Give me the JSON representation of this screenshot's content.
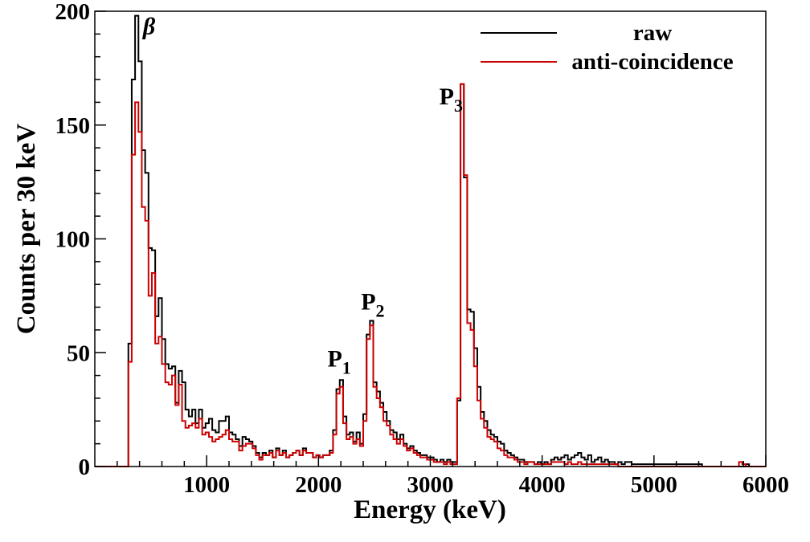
{
  "chart_data": {
    "type": "histogram",
    "title": "",
    "xlabel": "Energy (keV)",
    "ylabel": "Counts per 30 keV",
    "xlim": [
      0,
      6000
    ],
    "ylim": [
      0,
      200
    ],
    "x_ticks": [
      1000,
      2000,
      3000,
      4000,
      5000,
      6000
    ],
    "y_ticks": [
      0,
      50,
      100,
      150,
      200
    ],
    "x_tick_labels": [
      "1000",
      "2000",
      "3000",
      "4000",
      "5000",
      "6000"
    ],
    "y_tick_labels": [
      "0",
      "50",
      "100",
      "150",
      "200"
    ],
    "bin_width": 30,
    "series": [
      {
        "name": "raw",
        "color": "#000000",
        "points": [
          [
            0,
            0
          ],
          [
            270,
            0
          ],
          [
            300,
            54
          ],
          [
            330,
            170
          ],
          [
            360,
            198
          ],
          [
            390,
            178
          ],
          [
            420,
            139
          ],
          [
            450,
            129
          ],
          [
            480,
            96
          ],
          [
            510,
            95
          ],
          [
            540,
            66
          ],
          [
            570,
            74
          ],
          [
            600,
            56
          ],
          [
            630,
            45
          ],
          [
            660,
            43
          ],
          [
            690,
            44
          ],
          [
            720,
            28
          ],
          [
            750,
            42
          ],
          [
            780,
            37
          ],
          [
            810,
            25
          ],
          [
            840,
            22
          ],
          [
            870,
            25
          ],
          [
            900,
            19
          ],
          [
            930,
            25
          ],
          [
            960,
            17
          ],
          [
            990,
            19
          ],
          [
            1020,
            21
          ],
          [
            1050,
            16
          ],
          [
            1080,
            15
          ],
          [
            1110,
            20
          ],
          [
            1140,
            20
          ],
          [
            1170,
            22
          ],
          [
            1200,
            15
          ],
          [
            1230,
            14
          ],
          [
            1260,
            12
          ],
          [
            1290,
            9
          ],
          [
            1320,
            13
          ],
          [
            1350,
            12
          ],
          [
            1380,
            11
          ],
          [
            1410,
            9
          ],
          [
            1440,
            6
          ],
          [
            1470,
            4
          ],
          [
            1500,
            6
          ],
          [
            1530,
            5
          ],
          [
            1560,
            7
          ],
          [
            1590,
            4
          ],
          [
            1620,
            8
          ],
          [
            1650,
            5
          ],
          [
            1680,
            7
          ],
          [
            1710,
            4
          ],
          [
            1740,
            5
          ],
          [
            1770,
            6
          ],
          [
            1800,
            7
          ],
          [
            1830,
            5
          ],
          [
            1860,
            8
          ],
          [
            1890,
            6
          ],
          [
            1920,
            6
          ],
          [
            1950,
            4
          ],
          [
            1980,
            5
          ],
          [
            2010,
            4
          ],
          [
            2040,
            5
          ],
          [
            2070,
            5
          ],
          [
            2100,
            7
          ],
          [
            2130,
            16
          ],
          [
            2160,
            34
          ],
          [
            2190,
            38
          ],
          [
            2220,
            22
          ],
          [
            2250,
            14
          ],
          [
            2280,
            15
          ],
          [
            2310,
            11
          ],
          [
            2340,
            15
          ],
          [
            2370,
            10
          ],
          [
            2400,
            23
          ],
          [
            2430,
            58
          ],
          [
            2460,
            64
          ],
          [
            2490,
            37
          ],
          [
            2520,
            33
          ],
          [
            2550,
            28
          ],
          [
            2580,
            24
          ],
          [
            2610,
            20
          ],
          [
            2640,
            16
          ],
          [
            2670,
            15
          ],
          [
            2700,
            12
          ],
          [
            2730,
            14
          ],
          [
            2760,
            10
          ],
          [
            2790,
            8
          ],
          [
            2820,
            9
          ],
          [
            2850,
            7
          ],
          [
            2880,
            6
          ],
          [
            2910,
            5
          ],
          [
            2940,
            5
          ],
          [
            2970,
            4
          ],
          [
            3000,
            4
          ],
          [
            3030,
            3
          ],
          [
            3060,
            2
          ],
          [
            3090,
            3
          ],
          [
            3120,
            2
          ],
          [
            3150,
            3
          ],
          [
            3180,
            2
          ],
          [
            3210,
            2
          ],
          [
            3240,
            29
          ],
          [
            3270,
            168
          ],
          [
            3300,
            127
          ],
          [
            3330,
            69
          ],
          [
            3360,
            68
          ],
          [
            3390,
            52
          ],
          [
            3420,
            35
          ],
          [
            3450,
            24
          ],
          [
            3480,
            20
          ],
          [
            3510,
            16
          ],
          [
            3540,
            14
          ],
          [
            3570,
            13
          ],
          [
            3600,
            11
          ],
          [
            3630,
            10
          ],
          [
            3660,
            7
          ],
          [
            3690,
            6
          ],
          [
            3720,
            5
          ],
          [
            3750,
            4
          ],
          [
            3780,
            3
          ],
          [
            3810,
            3
          ],
          [
            3840,
            2
          ],
          [
            3870,
            2
          ],
          [
            3900,
            2
          ],
          [
            3930,
            1
          ],
          [
            3960,
            2
          ],
          [
            3990,
            1
          ],
          [
            4020,
            2
          ],
          [
            4050,
            1
          ],
          [
            4080,
            3
          ],
          [
            4110,
            4
          ],
          [
            4140,
            3
          ],
          [
            4170,
            4
          ],
          [
            4200,
            5
          ],
          [
            4230,
            3
          ],
          [
            4260,
            4
          ],
          [
            4290,
            5
          ],
          [
            4320,
            6
          ],
          [
            4350,
            4
          ],
          [
            4380,
            3
          ],
          [
            4410,
            5
          ],
          [
            4440,
            2
          ],
          [
            4470,
            3
          ],
          [
            4500,
            4
          ],
          [
            4530,
            2
          ],
          [
            4560,
            3
          ],
          [
            4590,
            2
          ],
          [
            4620,
            2
          ],
          [
            4650,
            1
          ],
          [
            4680,
            2
          ],
          [
            4710,
            1
          ],
          [
            4740,
            2
          ],
          [
            4770,
            2
          ],
          [
            4800,
            1
          ],
          [
            4830,
            1
          ],
          [
            4860,
            1
          ],
          [
            4890,
            1
          ],
          [
            5400,
            1
          ],
          [
            5430,
            0
          ],
          [
            5820,
            1
          ],
          [
            5850,
            0
          ],
          [
            6000,
            0
          ]
        ]
      },
      {
        "name": "anti-coincidence",
        "color": "#cc0000",
        "points": [
          [
            0,
            0
          ],
          [
            270,
            0
          ],
          [
            300,
            46
          ],
          [
            330,
            137
          ],
          [
            360,
            160
          ],
          [
            390,
            147
          ],
          [
            420,
            114
          ],
          [
            450,
            108
          ],
          [
            480,
            75
          ],
          [
            510,
            85
          ],
          [
            540,
            54
          ],
          [
            570,
            57
          ],
          [
            600,
            45
          ],
          [
            630,
            37
          ],
          [
            660,
            36
          ],
          [
            690,
            40
          ],
          [
            720,
            27
          ],
          [
            750,
            36
          ],
          [
            780,
            20
          ],
          [
            810,
            17
          ],
          [
            840,
            18
          ],
          [
            870,
            19
          ],
          [
            900,
            17
          ],
          [
            930,
            21
          ],
          [
            960,
            14
          ],
          [
            990,
            15
          ],
          [
            1020,
            13
          ],
          [
            1050,
            11
          ],
          [
            1080,
            12
          ],
          [
            1110,
            13
          ],
          [
            1140,
            14
          ],
          [
            1170,
            16
          ],
          [
            1200,
            12
          ],
          [
            1230,
            11
          ],
          [
            1260,
            11
          ],
          [
            1290,
            7
          ],
          [
            1320,
            9
          ],
          [
            1350,
            10
          ],
          [
            1380,
            10
          ],
          [
            1410,
            8
          ],
          [
            1440,
            5
          ],
          [
            1470,
            3
          ],
          [
            1500,
            5
          ],
          [
            1530,
            5
          ],
          [
            1560,
            6
          ],
          [
            1590,
            4
          ],
          [
            1620,
            7
          ],
          [
            1650,
            5
          ],
          [
            1680,
            6
          ],
          [
            1710,
            4
          ],
          [
            1740,
            5
          ],
          [
            1770,
            6
          ],
          [
            1800,
            7
          ],
          [
            1830,
            5
          ],
          [
            1860,
            7
          ],
          [
            1890,
            6
          ],
          [
            1920,
            6
          ],
          [
            1950,
            4
          ],
          [
            1980,
            5
          ],
          [
            2010,
            4
          ],
          [
            2040,
            5
          ],
          [
            2070,
            5
          ],
          [
            2100,
            6
          ],
          [
            2130,
            14
          ],
          [
            2160,
            32
          ],
          [
            2190,
            35
          ],
          [
            2220,
            19
          ],
          [
            2250,
            12
          ],
          [
            2280,
            13
          ],
          [
            2310,
            10
          ],
          [
            2340,
            12
          ],
          [
            2370,
            9
          ],
          [
            2400,
            20
          ],
          [
            2430,
            56
          ],
          [
            2460,
            62
          ],
          [
            2490,
            35
          ],
          [
            2520,
            30
          ],
          [
            2550,
            26
          ],
          [
            2580,
            20
          ],
          [
            2610,
            18
          ],
          [
            2640,
            14
          ],
          [
            2670,
            12
          ],
          [
            2700,
            10
          ],
          [
            2730,
            12
          ],
          [
            2760,
            9
          ],
          [
            2790,
            7
          ],
          [
            2820,
            8
          ],
          [
            2850,
            6
          ],
          [
            2880,
            5
          ],
          [
            2910,
            4
          ],
          [
            2940,
            4
          ],
          [
            2970,
            3
          ],
          [
            3000,
            3
          ],
          [
            3030,
            2
          ],
          [
            3060,
            2
          ],
          [
            3090,
            2
          ],
          [
            3120,
            1
          ],
          [
            3150,
            2
          ],
          [
            3180,
            1
          ],
          [
            3210,
            1
          ],
          [
            3240,
            30
          ],
          [
            3270,
            168
          ],
          [
            3300,
            128
          ],
          [
            3330,
            63
          ],
          [
            3360,
            60
          ],
          [
            3390,
            44
          ],
          [
            3420,
            29
          ],
          [
            3450,
            21
          ],
          [
            3480,
            17
          ],
          [
            3510,
            13
          ],
          [
            3540,
            12
          ],
          [
            3570,
            11
          ],
          [
            3600,
            8
          ],
          [
            3630,
            7
          ],
          [
            3660,
            5
          ],
          [
            3690,
            4
          ],
          [
            3720,
            4
          ],
          [
            3750,
            3
          ],
          [
            3780,
            2
          ],
          [
            3810,
            2
          ],
          [
            3840,
            1
          ],
          [
            3870,
            2
          ],
          [
            3900,
            2
          ],
          [
            3930,
            1
          ],
          [
            3960,
            1
          ],
          [
            3990,
            1
          ],
          [
            4020,
            1
          ],
          [
            4050,
            1
          ],
          [
            4080,
            2
          ],
          [
            4110,
            2
          ],
          [
            4140,
            2
          ],
          [
            4170,
            2
          ],
          [
            4200,
            1
          ],
          [
            4230,
            2
          ],
          [
            4260,
            1
          ],
          [
            4290,
            1
          ],
          [
            4320,
            2
          ],
          [
            4350,
            1
          ],
          [
            4380,
            1
          ],
          [
            4410,
            1
          ],
          [
            4440,
            1
          ],
          [
            4470,
            1
          ],
          [
            4500,
            1
          ],
          [
            4530,
            1
          ],
          [
            4560,
            1
          ],
          [
            4590,
            1
          ],
          [
            4620,
            1
          ],
          [
            4650,
            1
          ],
          [
            4680,
            0
          ],
          [
            5760,
            2
          ],
          [
            5790,
            1
          ],
          [
            5820,
            0
          ],
          [
            6000,
            0
          ]
        ]
      }
    ],
    "annotations": [
      {
        "label": "β",
        "x": 430,
        "y": 190,
        "style": "italic"
      },
      {
        "label": "P",
        "sub": "1",
        "x": 2080,
        "y": 44
      },
      {
        "label": "P",
        "sub": "2",
        "x": 2380,
        "y": 69
      },
      {
        "label": "P",
        "sub": "3",
        "x": 3080,
        "y": 159
      }
    ],
    "legend": {
      "position": "top-right",
      "entries": [
        "raw",
        "anti-coincidence"
      ]
    }
  }
}
